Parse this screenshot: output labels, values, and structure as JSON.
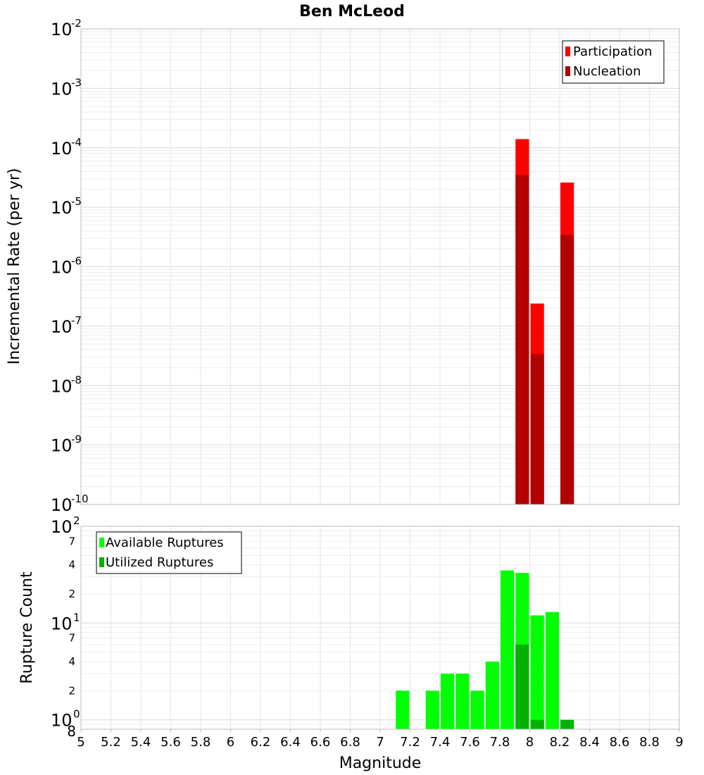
{
  "chart_data": {
    "title": "Ben McLeod",
    "type": "bar",
    "x_axis": {
      "label": "Magnitude",
      "range": [
        5,
        9
      ],
      "ticks": [
        "5",
        "5.2",
        "5.4",
        "5.6",
        "5.8",
        "6",
        "6.2",
        "6.4",
        "6.6",
        "6.8",
        "7",
        "7.2",
        "7.4",
        "7.6",
        "7.8",
        "8",
        "8.2",
        "8.4",
        "8.6",
        "8.8",
        "9"
      ]
    },
    "panels": [
      {
        "id": "rate",
        "ylabel": "Incremental Rate (per yr)",
        "yscale": "log",
        "ylim": [
          1e-10,
          0.01
        ],
        "major_ticks": [
          {
            "value": 1e-10,
            "base": "10",
            "exp": "-10"
          },
          {
            "value": 1e-09,
            "base": "10",
            "exp": "-9"
          },
          {
            "value": 1e-08,
            "base": "10",
            "exp": "-8"
          },
          {
            "value": 1e-07,
            "base": "10",
            "exp": "-7"
          },
          {
            "value": 1e-06,
            "base": "10",
            "exp": "-6"
          },
          {
            "value": 1e-05,
            "base": "10",
            "exp": "-5"
          },
          {
            "value": 0.0001,
            "base": "10",
            "exp": "-4"
          },
          {
            "value": 0.001,
            "base": "10",
            "exp": "-3"
          },
          {
            "value": 0.01,
            "base": "10",
            "exp": "-2"
          }
        ],
        "legend": {
          "position": "top-right",
          "entries": [
            "Participation",
            "Nucleation"
          ]
        },
        "series": [
          {
            "name": "Participation",
            "color": "#ff0000",
            "x": [
              7.95,
              8.05,
              8.25
            ],
            "values": [
              0.00014,
              2.4e-07,
              2.6e-05
            ]
          },
          {
            "name": "Nucleation",
            "color": "#b20000",
            "x": [
              7.95,
              8.05,
              8.25
            ],
            "values": [
              3.5e-05,
              3.4e-08,
              3.4e-06
            ]
          }
        ]
      },
      {
        "id": "count",
        "ylabel": "Rupture Count",
        "yscale": "log",
        "ylim": [
          0.8,
          100
        ],
        "major_ticks": [
          {
            "value": 1,
            "base": "10",
            "exp": "0"
          },
          {
            "value": 10,
            "base": "10",
            "exp": "1"
          },
          {
            "value": 100,
            "base": "10",
            "exp": "2"
          }
        ],
        "minor_ticks": [
          {
            "value": 0.8,
            "label": "8"
          },
          {
            "value": 2,
            "label": "2"
          },
          {
            "value": 4,
            "label": "4"
          },
          {
            "value": 7,
            "label": "7"
          },
          {
            "value": 20,
            "label": "2"
          },
          {
            "value": 40,
            "label": "4"
          },
          {
            "value": 70,
            "label": "7"
          }
        ],
        "legend": {
          "position": "top-left",
          "entries": [
            "Available Ruptures",
            "Utilized Ruptures"
          ]
        },
        "series": [
          {
            "name": "Available Ruptures",
            "color": "#00ff00",
            "x": [
              7.15,
              7.35,
              7.45,
              7.55,
              7.65,
              7.75,
              7.85,
              7.95,
              8.05,
              8.15
            ],
            "values": [
              2,
              2,
              3,
              3,
              2,
              4,
              35,
              33,
              12,
              13
            ]
          },
          {
            "name": "Utilized Ruptures",
            "color": "#00b200",
            "x": [
              7.95,
              8.05,
              8.25
            ],
            "values": [
              6,
              1,
              1
            ]
          }
        ]
      }
    ]
  }
}
